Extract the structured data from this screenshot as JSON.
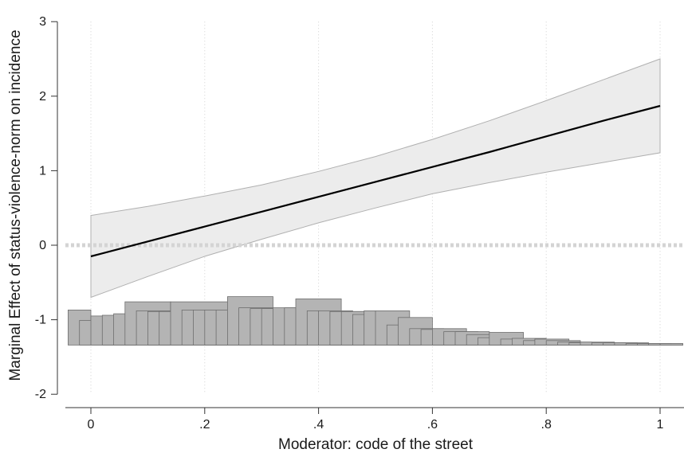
{
  "chart_data": {
    "type": "line",
    "title": "",
    "xlabel": "Moderator: code of the street",
    "ylabel": "Marginal Effect of status-violence-norm on incidence",
    "xlim": [
      0,
      1
    ],
    "ylim": [
      -2,
      3
    ],
    "x_ticks": [
      0,
      0.2,
      0.4,
      0.6,
      0.8,
      1
    ],
    "x_tick_labels": [
      "0",
      ".2",
      ".4",
      ".6",
      ".8",
      "1"
    ],
    "y_ticks": [
      -2,
      -1,
      0,
      1,
      2,
      3
    ],
    "y_tick_labels": [
      "-2",
      "-1",
      "0",
      "1",
      "2",
      "3"
    ],
    "grid": "vertical dotted at x ticks",
    "reference_line": {
      "y": 0,
      "style": "thick dotted light gray"
    },
    "series": [
      {
        "type": "line",
        "x": [
          0,
          0.1,
          0.2,
          0.3,
          0.4,
          0.5,
          0.6,
          0.7,
          0.8,
          0.9,
          1.0
        ],
        "y": [
          -0.15,
          0.05,
          0.25,
          0.45,
          0.65,
          0.85,
          1.05,
          1.25,
          1.46,
          1.67,
          1.87
        ]
      },
      {
        "type": "band",
        "x": [
          0,
          0.1,
          0.2,
          0.3,
          0.4,
          0.5,
          0.6,
          0.7,
          0.8,
          0.9,
          1.0
        ],
        "lower": [
          -0.7,
          -0.42,
          -0.15,
          0.08,
          0.3,
          0.5,
          0.69,
          0.84,
          0.98,
          1.11,
          1.24
        ],
        "upper": [
          0.4,
          0.52,
          0.66,
          0.81,
          0.99,
          1.19,
          1.42,
          1.67,
          1.94,
          2.22,
          2.5
        ]
      }
    ],
    "histogram": {
      "baseline": -1.34,
      "bars": [
        [
          -0.04,
          0.04,
          -0.87
        ],
        [
          -0.02,
          0.06,
          -1.01
        ],
        [
          0.0,
          0.08,
          -0.95
        ],
        [
          0.02,
          0.06,
          -0.94
        ],
        [
          0.04,
          0.06,
          -0.92
        ],
        [
          0.06,
          0.08,
          -0.76
        ],
        [
          0.08,
          0.06,
          -0.88
        ],
        [
          0.1,
          0.06,
          -0.89
        ],
        [
          0.12,
          0.06,
          -0.89
        ],
        [
          0.14,
          0.1,
          -0.76
        ],
        [
          0.16,
          0.06,
          -0.87
        ],
        [
          0.18,
          0.06,
          -0.87
        ],
        [
          0.2,
          0.06,
          -0.87
        ],
        [
          0.22,
          0.06,
          -0.87
        ],
        [
          0.24,
          0.08,
          -0.69
        ],
        [
          0.26,
          0.06,
          -0.84
        ],
        [
          0.28,
          0.06,
          -0.85
        ],
        [
          0.3,
          0.06,
          -0.85
        ],
        [
          0.32,
          0.06,
          -0.84
        ],
        [
          0.34,
          0.06,
          -0.84
        ],
        [
          0.36,
          0.08,
          -0.72
        ],
        [
          0.38,
          0.06,
          -0.88
        ],
        [
          0.4,
          0.06,
          -0.88
        ],
        [
          0.42,
          0.06,
          -0.89
        ],
        [
          0.44,
          0.06,
          -0.89
        ],
        [
          0.46,
          0.06,
          -0.93
        ],
        [
          0.48,
          0.06,
          -0.88
        ],
        [
          0.5,
          0.06,
          -0.88
        ],
        [
          0.52,
          0.06,
          -1.07
        ],
        [
          0.54,
          0.06,
          -0.97
        ],
        [
          0.56,
          0.06,
          -1.12
        ],
        [
          0.58,
          0.06,
          -1.13
        ],
        [
          0.6,
          0.06,
          -1.12
        ],
        [
          0.62,
          0.06,
          -1.16
        ],
        [
          0.64,
          0.06,
          -1.16
        ],
        [
          0.66,
          0.06,
          -1.2
        ],
        [
          0.68,
          0.06,
          -1.24
        ],
        [
          0.7,
          0.06,
          -1.17
        ],
        [
          0.72,
          0.06,
          -1.26
        ],
        [
          0.74,
          0.06,
          -1.25
        ],
        [
          0.76,
          0.06,
          -1.28
        ],
        [
          0.78,
          0.06,
          -1.26
        ],
        [
          0.8,
          0.06,
          -1.28
        ],
        [
          0.82,
          0.06,
          -1.3
        ],
        [
          0.84,
          0.06,
          -1.31
        ],
        [
          0.86,
          0.06,
          -1.3
        ],
        [
          0.88,
          0.06,
          -1.31
        ],
        [
          0.9,
          0.06,
          -1.31
        ],
        [
          0.92,
          0.06,
          -1.31
        ],
        [
          0.94,
          0.06,
          -1.32
        ],
        [
          0.96,
          0.06,
          -1.32
        ],
        [
          0.98,
          0.06,
          -1.32
        ],
        [
          1.0,
          0.04,
          -1.32
        ]
      ]
    },
    "colors": {
      "line": "#000000",
      "band_fill": "#ececec",
      "band_edge": "#b0b0b0",
      "hist_fill": "#b4b4b4",
      "hist_edge": "#6e6e6e",
      "grid": "#d0d0d0",
      "zero_line": "#d4d4d4",
      "axis": "#333333"
    }
  }
}
